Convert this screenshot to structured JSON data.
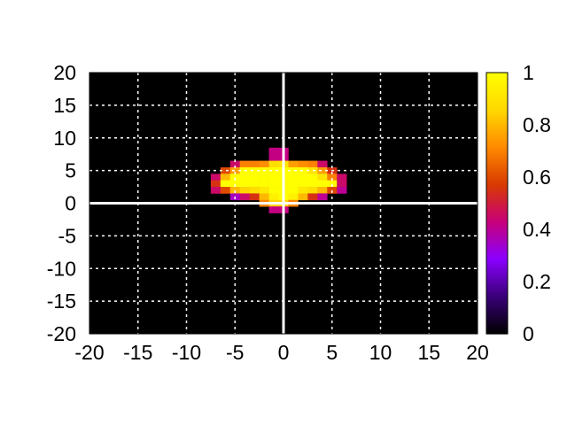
{
  "chart_data": {
    "type": "heatmap",
    "title": "",
    "xlabel": "",
    "ylabel": "",
    "xlim": [
      -20,
      20
    ],
    "ylim": [
      -20,
      20
    ],
    "cell_size": 1,
    "background_value": 0,
    "x_ticks": [
      "-20",
      "-15",
      "-10",
      "-5",
      "0",
      "5",
      "10",
      "15",
      "20"
    ],
    "y_ticks": [
      "20",
      "15",
      "10",
      "5",
      "0",
      "-5",
      "-10",
      "-15",
      "-20"
    ],
    "colorbar": {
      "range": [
        0,
        1
      ],
      "ticks": [
        "1",
        "0.8",
        "0.6",
        "0.4",
        "0.2",
        "0"
      ],
      "palette": [
        "#000000",
        "#3a0078",
        "#8a00ff",
        "#c8007a",
        "#d83a00",
        "#ff8a00",
        "#ffd800",
        "#ffff00"
      ]
    },
    "grid": true,
    "grid_color": "#ffffff",
    "zero_lines": true,
    "cells": [
      [
        -1,
        8,
        0.42
      ],
      [
        -1,
        7,
        0.42
      ],
      [
        0,
        8,
        0.42
      ],
      [
        0,
        7,
        0.42
      ],
      [
        -5,
        6,
        0.45
      ],
      [
        -4,
        6,
        0.7
      ],
      [
        -3,
        6,
        0.7
      ],
      [
        -2,
        6,
        0.72
      ],
      [
        -1,
        6,
        0.88
      ],
      [
        0,
        6,
        0.9
      ],
      [
        1,
        6,
        0.75
      ],
      [
        2,
        6,
        0.72
      ],
      [
        3,
        6,
        0.7
      ],
      [
        4,
        6,
        0.45
      ],
      [
        -6,
        5,
        0.6
      ],
      [
        -5,
        5,
        0.75
      ],
      [
        -4,
        5,
        1.0
      ],
      [
        -3,
        5,
        1.0
      ],
      [
        -2,
        5,
        1.0
      ],
      [
        -1,
        5,
        1.0
      ],
      [
        0,
        5,
        1.0
      ],
      [
        1,
        5,
        1.0
      ],
      [
        2,
        5,
        1.0
      ],
      [
        3,
        5,
        0.9
      ],
      [
        4,
        5,
        0.75
      ],
      [
        5,
        5,
        0.55
      ],
      [
        -7,
        4,
        0.45
      ],
      [
        -6,
        4,
        0.8
      ],
      [
        -5,
        4,
        1.0
      ],
      [
        -4,
        4,
        1.0
      ],
      [
        -3,
        4,
        1.0
      ],
      [
        -2,
        4,
        1.0
      ],
      [
        -1,
        4,
        1.0
      ],
      [
        0,
        4,
        1.0
      ],
      [
        1,
        4,
        1.0
      ],
      [
        2,
        4,
        1.0
      ],
      [
        3,
        4,
        1.0
      ],
      [
        4,
        4,
        0.9
      ],
      [
        5,
        4,
        0.7
      ],
      [
        6,
        4,
        0.45
      ],
      [
        -7,
        3,
        0.55
      ],
      [
        -6,
        3,
        1.0
      ],
      [
        -5,
        3,
        1.0
      ],
      [
        -4,
        3,
        1.0
      ],
      [
        -3,
        3,
        1.0
      ],
      [
        -2,
        3,
        1.0
      ],
      [
        -1,
        3,
        1.0
      ],
      [
        0,
        3,
        1.0
      ],
      [
        1,
        3,
        1.0
      ],
      [
        2,
        3,
        1.0
      ],
      [
        3,
        3,
        1.0
      ],
      [
        4,
        3,
        1.0
      ],
      [
        5,
        3,
        1.0
      ],
      [
        6,
        3,
        0.45
      ],
      [
        -7,
        2,
        0.45
      ],
      [
        -6,
        2,
        0.6
      ],
      [
        -5,
        2,
        0.8
      ],
      [
        -4,
        2,
        0.85
      ],
      [
        -3,
        2,
        0.88
      ],
      [
        -2,
        2,
        0.92
      ],
      [
        -1,
        2,
        1.0
      ],
      [
        0,
        2,
        1.0
      ],
      [
        1,
        2,
        1.0
      ],
      [
        2,
        2,
        0.92
      ],
      [
        3,
        2,
        0.88
      ],
      [
        4,
        2,
        0.8
      ],
      [
        5,
        2,
        0.6
      ],
      [
        6,
        2,
        0.4
      ],
      [
        -5,
        1,
        0.35
      ],
      [
        -4,
        1,
        0.45
      ],
      [
        -3,
        1,
        0.55
      ],
      [
        -2,
        1,
        0.8
      ],
      [
        -1,
        1,
        0.95
      ],
      [
        0,
        1,
        1.0
      ],
      [
        1,
        1,
        0.95
      ],
      [
        2,
        1,
        0.8
      ],
      [
        3,
        1,
        0.55
      ],
      [
        4,
        1,
        0.4
      ],
      [
        -2,
        0,
        0.7
      ],
      [
        -1,
        0,
        0.85
      ],
      [
        0,
        0,
        0.85
      ],
      [
        1,
        0,
        0.7
      ],
      [
        -1,
        -1,
        0.42
      ],
      [
        0,
        -1,
        0.42
      ]
    ]
  }
}
